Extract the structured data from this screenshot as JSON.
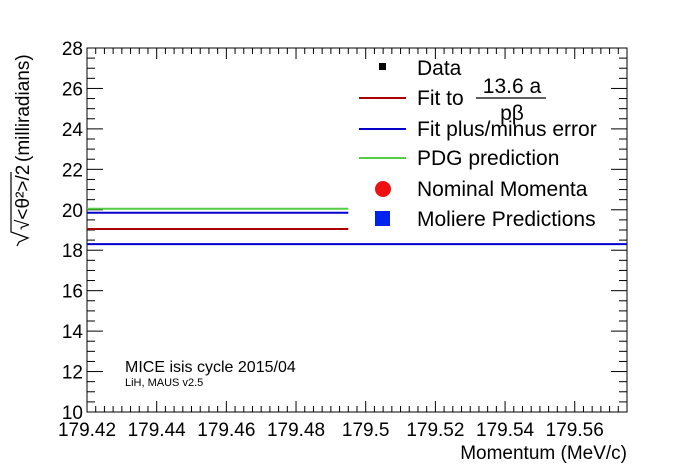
{
  "chart_data": {
    "type": "line",
    "title": "",
    "xlabel": "Momentum (MeV/c)",
    "ylabel": "(milliradians)",
    "ylabel_formula": "√<θ²>/2",
    "xlim": [
      179.42,
      179.575
    ],
    "ylim": [
      10,
      28
    ],
    "xticks": [
      "179.42",
      "179.44",
      "179.46",
      "179.48",
      "179.5",
      "179.52",
      "179.54",
      "179.56"
    ],
    "yticks": [
      "10",
      "12",
      "14",
      "16",
      "18",
      "20",
      "22",
      "24",
      "26",
      "28"
    ],
    "grid": false,
    "legend_position": "top-right",
    "series": [
      {
        "name": "Fit to 13.6 a / pβ",
        "color": "#aa0000",
        "x": [
          179.42,
          179.495
        ],
        "y": [
          19.05,
          19.05
        ]
      },
      {
        "name": "Fit plus/minus error",
        "color": "#0000cc",
        "x": [
          179.42,
          179.575
        ],
        "y": [
          18.3,
          18.3
        ]
      },
      {
        "name": "Fit plus/minus error",
        "color": "#0000cc",
        "x": [
          179.42,
          179.495
        ],
        "y": [
          19.85,
          19.85
        ]
      },
      {
        "name": "PDG prediction",
        "color": "#55cc44",
        "x": [
          179.42,
          179.495
        ],
        "y": [
          20.05,
          20.05
        ]
      }
    ],
    "legend": [
      {
        "label_prefix": "Fit to",
        "numerator": "13.6 a",
        "denominator": "pβ"
      }
    ]
  },
  "legend": {
    "data": "Data",
    "fit_prefix": "Fit to",
    "fit_numerator": "13.6 a",
    "fit_denominator": "pβ",
    "error": "Fit plus/minus error",
    "pdg": "PDG prediction",
    "nominal": "Nominal Momenta",
    "moliere": "Moliere Predictions"
  },
  "annotation": {
    "line1": "MICE isis cycle 2015/04",
    "line2": "LiH, MAUS v2.5"
  },
  "colors": {
    "fit": "#aa0000",
    "error": "#0000cc",
    "pdg": "#55cc44",
    "nominal": "#ee1111",
    "moliere": "#0022ee"
  }
}
